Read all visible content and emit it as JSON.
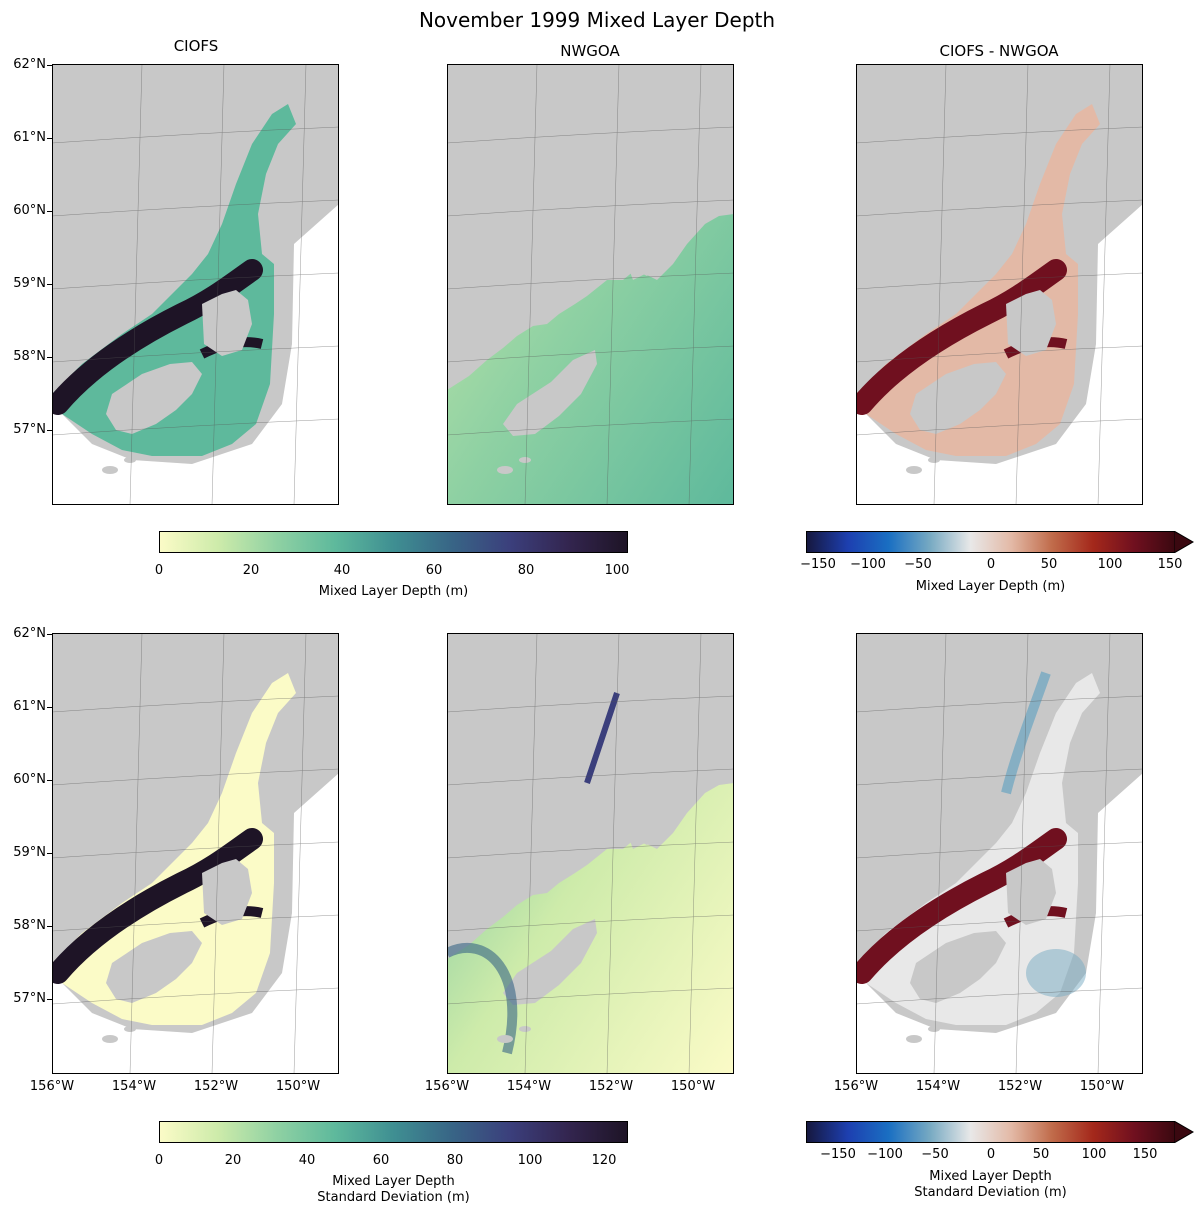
{
  "title": "November 1999 Mixed Layer Depth",
  "columns": [
    "CIOFS",
    "NWGOA",
    "CIOFS - NWGOA"
  ],
  "lat_labels": [
    "62°N",
    "61°N",
    "60°N",
    "59°N",
    "58°N",
    "57°N"
  ],
  "lon_labels": [
    "156°W",
    "154°W",
    "152°W",
    "150°W"
  ],
  "colorbars": {
    "top_seq": {
      "ticks": [
        "0",
        "20",
        "40",
        "60",
        "80",
        "100"
      ],
      "label_line1": "Mixed Layer Depth (m)",
      "label_line2": ""
    },
    "top_div": {
      "ticks": [
        "−150",
        "−100",
        "−50",
        "0",
        "50",
        "100",
        "150"
      ],
      "label_line1": "Mixed Layer Depth (m)",
      "label_line2": ""
    },
    "bot_seq": {
      "ticks": [
        "0",
        "20",
        "40",
        "60",
        "80",
        "100",
        "120"
      ],
      "label_line1": "Mixed Layer Depth",
      "label_line2": "Standard Deviation (m)"
    },
    "bot_div": {
      "ticks": [
        "−150",
        "−100",
        "−50",
        "0",
        "50",
        "100",
        "150"
      ],
      "label_line1": "Mixed Layer Depth",
      "label_line2": "Standard Deviation (m)"
    }
  },
  "colors": {
    "land": "#c8c8c8",
    "sequential": [
      "#fbfbc7",
      "#cdebaa",
      "#8fd1a3",
      "#5eb99c",
      "#3f8f92",
      "#386586",
      "#3b3f7c",
      "#33254f",
      "#1e1426"
    ],
    "diverging": [
      "#16183f",
      "#1d3fb0",
      "#1a6fc2",
      "#76a9c2",
      "#e8e8e8",
      "#e3b9a6",
      "#c06b4a",
      "#a4281b",
      "#70101f",
      "#3a0810"
    ]
  }
}
